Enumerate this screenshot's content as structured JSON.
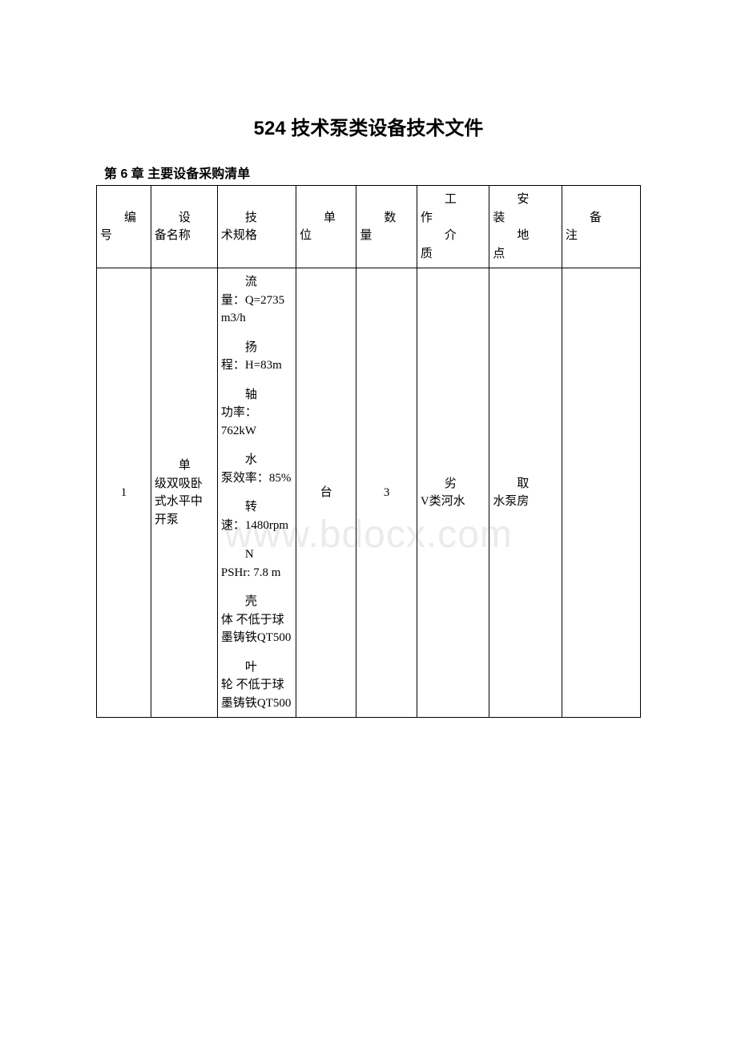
{
  "document": {
    "title": "524 技术泵类设备技术文件",
    "chapter": "第 6 章 主要设备采购清单",
    "watermark": "www.bdocx.com"
  },
  "table": {
    "headers": {
      "num": {
        "l1": "编",
        "l2": "号"
      },
      "name": {
        "l1": "设",
        "l2": "备名称"
      },
      "spec": {
        "l1": "技",
        "l2": "术规格"
      },
      "unit": {
        "l1": "单",
        "l2": "位"
      },
      "qty": {
        "l1": "数",
        "l2": "量"
      },
      "medium": {
        "l1": "工",
        "l2a": "作",
        "l2b": "介",
        "l2c": "质"
      },
      "location": {
        "l1": "安",
        "l2a": "装",
        "l2b": "地",
        "l2c": "点"
      },
      "note": {
        "l1": "备",
        "l2": "注"
      }
    },
    "row1": {
      "num": "1",
      "name_l1": "单",
      "name_rest": "级双吸卧式水平中开泵",
      "specs": [
        {
          "first": "流",
          "rest": "量：Q=2735 m3/h"
        },
        {
          "first": "扬",
          "rest": "程：H=83m"
        },
        {
          "first": "轴",
          "rest": "功率：762kW"
        },
        {
          "first": "水",
          "rest": "泵效率：85%"
        },
        {
          "first": "转",
          "rest": "速：1480rpm"
        },
        {
          "first": "N",
          "rest": "PSHr: 7.8 m"
        },
        {
          "first": "壳",
          "rest": "体 不低于球墨铸铁QT500"
        },
        {
          "first": "叶",
          "rest": "轮 不低于球墨铸铁QT500"
        }
      ],
      "unit": "台",
      "qty": "3",
      "medium_l1": "劣",
      "medium_rest": "V类河水",
      "location_l1": "取",
      "location_rest": "水泵房",
      "note": ""
    }
  },
  "style": {
    "background": "#ffffff",
    "border_color": "#000000",
    "watermark_color": "#ebebeb",
    "title_fontsize": 24,
    "body_fontsize": 15
  }
}
